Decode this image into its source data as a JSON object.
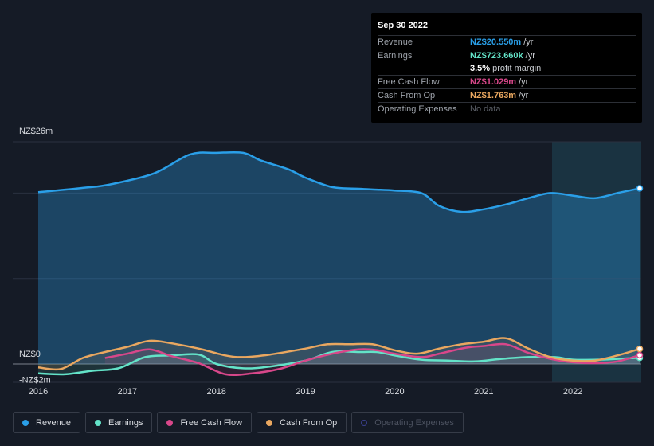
{
  "tooltip": {
    "date": "Sep 30 2022",
    "rows": [
      {
        "label": "Revenue",
        "value": "NZ$20.550m",
        "unit": "/yr",
        "color": "#2a9fe8"
      },
      {
        "label": "Earnings",
        "value": "NZ$723.660k",
        "unit": "/yr",
        "color": "#63e3c8"
      },
      {
        "label": "",
        "value": "3.5%",
        "unit": "profit margin",
        "color": "#ffffff"
      },
      {
        "label": "Free Cash Flow",
        "value": "NZ$1.029m",
        "unit": "/yr",
        "color": "#d8478a"
      },
      {
        "label": "Cash From Op",
        "value": "NZ$1.763m",
        "unit": "/yr",
        "color": "#e9a760"
      },
      {
        "label": "Operating Expenses",
        "value": "No data",
        "unit": "",
        "color": "#5c6068"
      }
    ]
  },
  "legend": [
    {
      "label": "Revenue",
      "color": "#2a9fe8",
      "active": true
    },
    {
      "label": "Earnings",
      "color": "#63e3c8",
      "active": true
    },
    {
      "label": "Free Cash Flow",
      "color": "#d8478a",
      "active": true
    },
    {
      "label": "Cash From Op",
      "color": "#e9a760",
      "active": true
    },
    {
      "label": "Operating Expenses",
      "color": "#3a3f8c",
      "active": false
    }
  ],
  "chart_data": {
    "type": "area",
    "ylabels": [
      "NZ$26m",
      "NZ$0",
      "-NZ$2m"
    ],
    "xticks": [
      "2016",
      "2017",
      "2018",
      "2019",
      "2020",
      "2021",
      "2022"
    ],
    "ylim": [
      -2,
      26
    ],
    "currency": "NZ$",
    "unit": "m",
    "series": [
      {
        "name": "Revenue",
        "color": "#2a9fe8",
        "x": [
          2016.0,
          2016.5,
          2016.8,
          2017.3,
          2017.7,
          2018.0,
          2018.3,
          2018.5,
          2018.8,
          2019.0,
          2019.3,
          2019.6,
          2019.8,
          2020.0,
          2020.3,
          2020.5,
          2020.75,
          2021.0,
          2021.3,
          2021.5,
          2021.75,
          2022.0,
          2022.25,
          2022.5,
          2022.75
        ],
        "values": [
          20.1,
          20.6,
          21.0,
          22.3,
          24.5,
          24.7,
          24.7,
          23.8,
          22.8,
          21.8,
          20.7,
          20.5,
          20.4,
          20.3,
          20.0,
          18.5,
          17.8,
          18.1,
          18.8,
          19.4,
          20.0,
          19.7,
          19.4,
          20.0,
          20.55
        ]
      },
      {
        "name": "Earnings",
        "color": "#63e3c8",
        "x": [
          2016.0,
          2016.3,
          2016.6,
          2016.9,
          2017.2,
          2017.5,
          2017.8,
          2018.0,
          2018.3,
          2018.6,
          2019.0,
          2019.3,
          2019.6,
          2019.8,
          2020.0,
          2020.3,
          2020.6,
          2020.9,
          2021.2,
          2021.5,
          2021.8,
          2022.0,
          2022.3,
          2022.5,
          2022.75
        ],
        "values": [
          -1.1,
          -1.2,
          -0.8,
          -0.5,
          0.8,
          1.0,
          1.1,
          0.0,
          -0.5,
          -0.3,
          0.4,
          1.4,
          1.4,
          1.4,
          1.0,
          0.5,
          0.4,
          0.3,
          0.6,
          0.8,
          0.8,
          0.5,
          0.5,
          0.6,
          0.72
        ]
      },
      {
        "name": "Free Cash Flow",
        "color": "#d8478a",
        "x": [
          2016.75,
          2017.0,
          2017.25,
          2017.5,
          2017.8,
          2018.1,
          2018.4,
          2018.7,
          2019.0,
          2019.3,
          2019.6,
          2019.8,
          2020.0,
          2020.3,
          2020.5,
          2020.8,
          2021.0,
          2021.25,
          2021.5,
          2021.75,
          2022.0,
          2022.25,
          2022.5,
          2022.75
        ],
        "values": [
          0.7,
          1.2,
          1.7,
          0.9,
          0.1,
          -1.2,
          -1.1,
          -0.6,
          0.4,
          1.2,
          1.7,
          1.6,
          1.2,
          0.8,
          1.2,
          1.9,
          2.1,
          2.3,
          1.3,
          0.6,
          0.2,
          0.1,
          0.3,
          1.03
        ]
      },
      {
        "name": "Cash From Op",
        "color": "#e9a760",
        "x": [
          2016.0,
          2016.25,
          2016.5,
          2016.75,
          2017.0,
          2017.25,
          2017.5,
          2017.8,
          2018.1,
          2018.3,
          2018.6,
          2019.0,
          2019.25,
          2019.5,
          2019.75,
          2020.0,
          2020.25,
          2020.5,
          2020.75,
          2021.0,
          2021.25,
          2021.5,
          2021.75,
          2022.0,
          2022.25,
          2022.5,
          2022.75
        ],
        "values": [
          -0.4,
          -0.6,
          0.7,
          1.4,
          2.0,
          2.7,
          2.4,
          1.8,
          1.0,
          0.8,
          1.1,
          1.8,
          2.3,
          2.3,
          2.3,
          1.6,
          1.2,
          1.8,
          2.3,
          2.6,
          3.0,
          1.8,
          0.8,
          0.4,
          0.4,
          1.0,
          1.76
        ]
      }
    ]
  }
}
